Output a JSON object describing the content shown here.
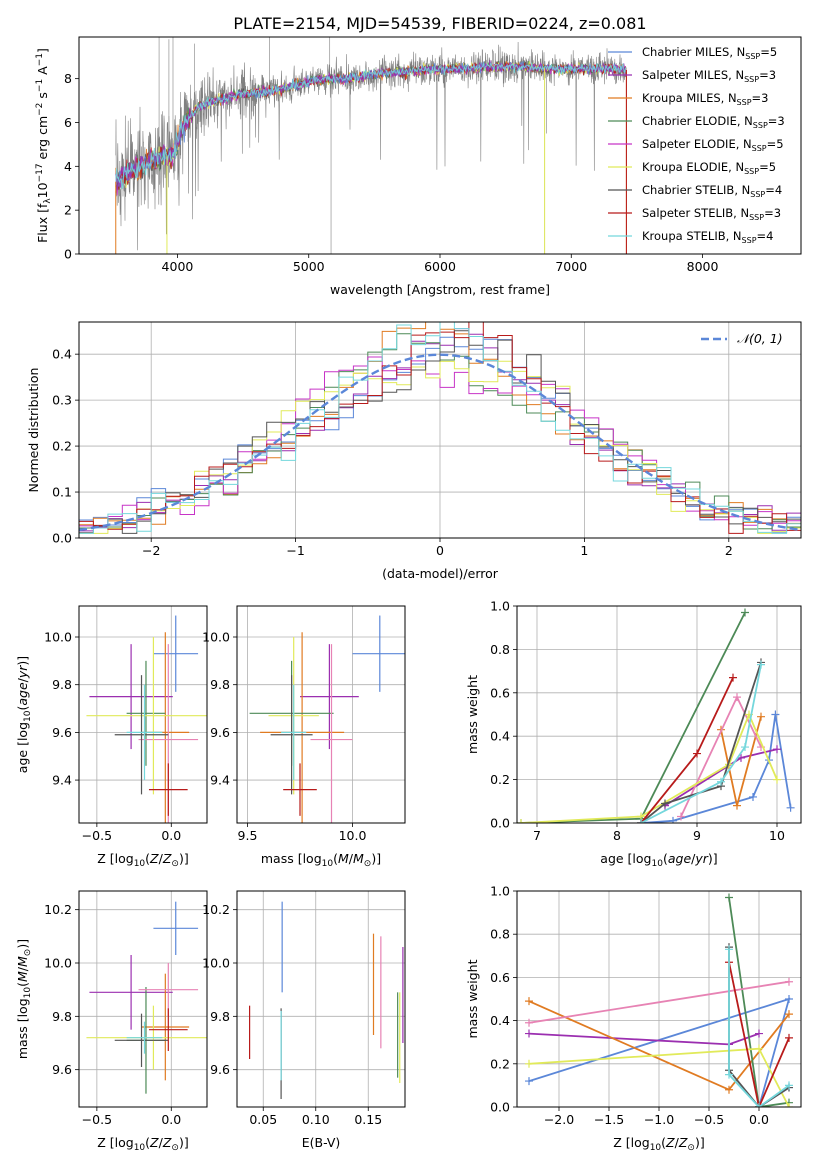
{
  "figure": {
    "title": "PLATE=2154, MJD=54539, FIBERID=0224, z=0.081"
  },
  "palette": {
    "chabrier_miles": "#5b87d8",
    "salpeter_miles": "#9b2fb0",
    "kroupa_miles": "#e07b22",
    "chabrier_elodie": "#4d8a57",
    "salpeter_elodie": "#c734c7",
    "kroupa_elodie": "#e1ea5a",
    "chabrier_stelib": "#555555",
    "salpeter_stelib": "#b81b1b",
    "kroupa_stelib": "#74d7dc",
    "data_gray": "#808080",
    "pink": "#e783b4",
    "grid": "#b0b0b0"
  },
  "chart_data": [
    {
      "id": "spectrum",
      "type": "line",
      "title": "",
      "xlabel": "wavelength [Angstrom, rest frame]",
      "ylabel": "Flux [f_λ 10^-17 erg cm^-2 s^-1 A^-1]",
      "xlim": [
        3250,
        8750
      ],
      "ylim": [
        0,
        9.9
      ],
      "xticks": [
        4000,
        5000,
        6000,
        7000,
        8000
      ],
      "yticks": [
        0,
        2,
        4,
        6,
        8
      ],
      "grid": false,
      "legend_position": "right",
      "x_range_data": [
        3530,
        7420
      ],
      "continuum": [
        [
          3530,
          3.3
        ],
        [
          3600,
          3.6
        ],
        [
          3700,
          3.9
        ],
        [
          3800,
          4.2
        ],
        [
          3900,
          4.5
        ],
        [
          3960,
          4.4
        ],
        [
          4050,
          5.8
        ],
        [
          4150,
          6.7
        ],
        [
          4300,
          7.0
        ],
        [
          4500,
          7.3
        ],
        [
          4700,
          7.4
        ],
        [
          4900,
          7.7
        ],
        [
          5100,
          8.0
        ],
        [
          5300,
          8.0
        ],
        [
          5500,
          8.2
        ],
        [
          5700,
          8.3
        ],
        [
          5900,
          8.4
        ],
        [
          6100,
          8.45
        ],
        [
          6300,
          8.5
        ],
        [
          6500,
          8.55
        ],
        [
          6700,
          8.5
        ],
        [
          6900,
          8.45
        ],
        [
          7100,
          8.45
        ],
        [
          7300,
          8.45
        ],
        [
          7420,
          8.4
        ]
      ],
      "legend": [
        {
          "label": "Chabrier MILES, N",
          "sub": "SSP",
          "suffix": "=5",
          "color_key": "chabrier_miles"
        },
        {
          "label": "Salpeter MILES, N",
          "sub": "SSP",
          "suffix": "=3",
          "color_key": "salpeter_miles"
        },
        {
          "label": "Kroupa MILES, N",
          "sub": "SSP",
          "suffix": "=3",
          "color_key": "kroupa_miles"
        },
        {
          "label": "Chabrier ELODIE, N",
          "sub": "SSP",
          "suffix": "=3",
          "color_key": "chabrier_elodie"
        },
        {
          "label": "Salpeter ELODIE, N",
          "sub": "SSP",
          "suffix": "=5",
          "color_key": "salpeter_elodie"
        },
        {
          "label": "Kroupa ELODIE, N",
          "sub": "SSP",
          "suffix": "=5",
          "color_key": "kroupa_elodie"
        },
        {
          "label": "Chabrier STELIB, N",
          "sub": "SSP",
          "suffix": "=4",
          "color_key": "chabrier_stelib"
        },
        {
          "label": "Salpeter STELIB, N",
          "sub": "SSP",
          "suffix": "=3",
          "color_key": "salpeter_stelib"
        },
        {
          "label": "Kroupa STELIB, N",
          "sub": "SSP",
          "suffix": "=4",
          "color_key": "kroupa_stelib"
        }
      ]
    },
    {
      "id": "residuals",
      "type": "line",
      "title": "",
      "xlabel": "(data-model)/error",
      "ylabel": "Normed distribution",
      "xlim": [
        -2.5,
        2.5
      ],
      "ylim": [
        0,
        0.47
      ],
      "xticks": [
        -2,
        -1,
        0,
        1,
        2
      ],
      "yticks": [
        0.0,
        0.1,
        0.2,
        0.3,
        0.4
      ],
      "grid": true,
      "legend_position": "upper right",
      "legend": [
        {
          "label": "𝒩(0, 1)",
          "color_key": "chabrier_miles"
        }
      ],
      "gaussian": {
        "mu": 0,
        "sigma": 1
      }
    },
    {
      "id": "age_vs_Z",
      "type": "scatter",
      "title": "",
      "xlabel": "Z [log10(Z/Z⊙)]",
      "ylabel": "age [log10(age/yr)]",
      "xlim": [
        -0.62,
        0.24
      ],
      "ylim": [
        9.22,
        10.13
      ],
      "xticks": [
        -0.5,
        0.0
      ],
      "yticks": [
        9.4,
        9.6,
        9.8,
        10.0
      ],
      "grid": true,
      "points": [
        {
          "x": 0.03,
          "y": 9.93,
          "xerr": 0.15,
          "yerr": 0.16,
          "color_key": "chabrier_miles"
        },
        {
          "x": -0.27,
          "y": 9.75,
          "xerr": 0.28,
          "yerr": 0.22,
          "color_key": "salpeter_miles"
        },
        {
          "x": -0.04,
          "y": 9.6,
          "xerr": 0.16,
          "yerr": 0.42,
          "color_key": "kroupa_miles"
        },
        {
          "x": -0.17,
          "y": 9.68,
          "xerr": 0.13,
          "yerr": 0.22,
          "color_key": "chabrier_elodie"
        },
        {
          "x": -0.02,
          "y": 9.57,
          "xerr": 0.2,
          "yerr": 0.4,
          "color_key": "pink"
        },
        {
          "x": -0.12,
          "y": 9.67,
          "xerr": 0.45,
          "yerr": 0.33,
          "color_key": "kroupa_elodie"
        },
        {
          "x": -0.2,
          "y": 9.59,
          "xerr": 0.18,
          "yerr": 0.25,
          "color_key": "chabrier_stelib"
        },
        {
          "x": -0.02,
          "y": 9.36,
          "xerr": 0.13,
          "yerr": 0.11,
          "color_key": "salpeter_stelib"
        },
        {
          "x": -0.18,
          "y": 9.6,
          "xerr": 0.12,
          "yerr": 0.2,
          "color_key": "kroupa_stelib"
        }
      ]
    },
    {
      "id": "age_vs_mass",
      "type": "scatter",
      "title": "",
      "xlabel": "mass [log10(M/M⊙)]",
      "ylabel": "",
      "xlim": [
        9.45,
        10.25
      ],
      "ylim": [
        9.22,
        10.13
      ],
      "xticks": [
        9.5,
        10.0
      ],
      "yticks": [
        9.4,
        9.6,
        9.8,
        10.0
      ],
      "grid": true,
      "points": [
        {
          "x": 10.13,
          "y": 9.93,
          "xerr": 0.13,
          "yerr": 0.16,
          "color_key": "chabrier_miles"
        },
        {
          "x": 9.89,
          "y": 9.75,
          "xerr": 0.14,
          "yerr": 0.22,
          "color_key": "salpeter_miles"
        },
        {
          "x": 9.76,
          "y": 9.6,
          "xerr": 0.2,
          "yerr": 0.42,
          "color_key": "kroupa_miles"
        },
        {
          "x": 9.71,
          "y": 9.68,
          "xerr": 0.2,
          "yerr": 0.22,
          "color_key": "chabrier_elodie"
        },
        {
          "x": 9.9,
          "y": 9.57,
          "xerr": 0.1,
          "yerr": 0.4,
          "color_key": "pink"
        },
        {
          "x": 9.72,
          "y": 9.67,
          "xerr": 0.12,
          "yerr": 0.33,
          "color_key": "kroupa_elodie"
        },
        {
          "x": 9.71,
          "y": 9.59,
          "xerr": 0.1,
          "yerr": 0.25,
          "color_key": "chabrier_stelib"
        },
        {
          "x": 9.75,
          "y": 9.36,
          "xerr": 0.08,
          "yerr": 0.11,
          "color_key": "salpeter_stelib"
        },
        {
          "x": 9.72,
          "y": 9.6,
          "xerr": 0.06,
          "yerr": 0.2,
          "color_key": "kroupa_stelib"
        }
      ]
    },
    {
      "id": "weight_vs_age",
      "type": "line",
      "title": "",
      "xlabel": "age [log10(age/yr)]",
      "ylabel": "mass weight",
      "xlim": [
        6.75,
        10.3
      ],
      "ylim": [
        0,
        1.0
      ],
      "xticks": [
        7,
        8,
        9,
        10
      ],
      "yticks": [
        0.0,
        0.2,
        0.4,
        0.6,
        0.8,
        1.0
      ],
      "grid": true,
      "series": [
        {
          "color_key": "chabrier_miles",
          "points": [
            [
              8.3,
              0.0
            ],
            [
              8.7,
              0.01
            ],
            [
              9.7,
              0.12
            ],
            [
              9.9,
              0.29
            ],
            [
              9.98,
              0.5
            ],
            [
              10.17,
              0.07
            ]
          ]
        },
        {
          "color_key": "salpeter_miles",
          "points": [
            [
              8.6,
              0.08
            ],
            [
              9.55,
              0.3
            ],
            [
              10.0,
              0.34
            ]
          ]
        },
        {
          "color_key": "kroupa_miles",
          "points": [
            [
              9.3,
              0.43
            ],
            [
              9.5,
              0.08
            ],
            [
              9.8,
              0.49
            ]
          ]
        },
        {
          "color_key": "chabrier_elodie",
          "points": [
            [
              6.8,
              0.0
            ],
            [
              8.3,
              0.02
            ],
            [
              9.6,
              0.97
            ]
          ]
        },
        {
          "color_key": "pink",
          "points": [
            [
              8.8,
              0.03
            ],
            [
              9.5,
              0.58
            ],
            [
              9.8,
              0.35
            ]
          ]
        },
        {
          "color_key": "kroupa_elodie",
          "points": [
            [
              6.8,
              0.0
            ],
            [
              8.3,
              0.03
            ],
            [
              9.4,
              0.27
            ],
            [
              9.65,
              0.5
            ],
            [
              10.0,
              0.2
            ]
          ]
        },
        {
          "color_key": "chabrier_stelib",
          "points": [
            [
              8.3,
              0.0
            ],
            [
              8.6,
              0.09
            ],
            [
              9.3,
              0.17
            ],
            [
              9.8,
              0.74
            ]
          ]
        },
        {
          "color_key": "salpeter_stelib",
          "points": [
            [
              8.3,
              0.0
            ],
            [
              9.0,
              0.32
            ],
            [
              9.45,
              0.67
            ]
          ]
        },
        {
          "color_key": "kroupa_stelib",
          "points": [
            [
              8.3,
              0.0
            ],
            [
              9.3,
              0.19
            ],
            [
              9.6,
              0.35
            ],
            [
              9.8,
              0.73
            ]
          ]
        }
      ]
    },
    {
      "id": "mass_vs_Z",
      "type": "scatter",
      "title": "",
      "xlabel": "Z [log10(Z/Z⊙)]",
      "ylabel": "mass [log10(M/M⊙)]",
      "xlim": [
        -0.62,
        0.24
      ],
      "ylim": [
        9.46,
        10.27
      ],
      "xticks": [
        -0.5,
        0.0
      ],
      "yticks": [
        9.6,
        9.8,
        10.0,
        10.2
      ],
      "grid": true,
      "points": [
        {
          "x": 0.03,
          "y": 10.13,
          "xerr": 0.15,
          "yerr": 0.1,
          "color_key": "chabrier_miles"
        },
        {
          "x": -0.27,
          "y": 9.89,
          "xerr": 0.28,
          "yerr": 0.14,
          "color_key": "salpeter_miles"
        },
        {
          "x": -0.04,
          "y": 9.76,
          "xerr": 0.16,
          "yerr": 0.2,
          "color_key": "kroupa_miles"
        },
        {
          "x": -0.17,
          "y": 9.71,
          "xerr": 0.13,
          "yerr": 0.2,
          "color_key": "chabrier_elodie"
        },
        {
          "x": -0.02,
          "y": 9.9,
          "xerr": 0.2,
          "yerr": 0.1,
          "color_key": "pink"
        },
        {
          "x": -0.12,
          "y": 9.72,
          "xerr": 0.45,
          "yerr": 0.12,
          "color_key": "kroupa_elodie"
        },
        {
          "x": -0.2,
          "y": 9.71,
          "xerr": 0.18,
          "yerr": 0.1,
          "color_key": "chabrier_stelib"
        },
        {
          "x": -0.02,
          "y": 9.75,
          "xerr": 0.13,
          "yerr": 0.08,
          "color_key": "salpeter_stelib"
        },
        {
          "x": -0.18,
          "y": 9.72,
          "xerr": 0.12,
          "yerr": 0.06,
          "color_key": "kroupa_stelib"
        }
      ]
    },
    {
      "id": "mass_vs_ebv",
      "type": "scatter",
      "title": "",
      "xlabel": "E(B-V)",
      "ylabel": "",
      "xlim": [
        0.025,
        0.185
      ],
      "ylim": [
        9.46,
        10.27
      ],
      "xticks": [
        0.05,
        0.1,
        0.15
      ],
      "yticks": [
        9.6,
        9.8,
        10.0,
        10.2
      ],
      "grid": true,
      "points": [
        {
          "x": 0.068,
          "y": 10.06,
          "xerr": 0,
          "yerr": 0.17,
          "color_key": "chabrier_miles"
        },
        {
          "x": 0.183,
          "y": 9.88,
          "xerr": 0,
          "yerr": 0.18,
          "color_key": "salpeter_miles"
        },
        {
          "x": 0.155,
          "y": 9.92,
          "xerr": 0,
          "yerr": 0.19,
          "color_key": "kroupa_miles"
        },
        {
          "x": 0.178,
          "y": 9.73,
          "xerr": 0,
          "yerr": 0.16,
          "color_key": "chabrier_elodie"
        },
        {
          "x": 0.162,
          "y": 9.89,
          "xerr": 0,
          "yerr": 0.21,
          "color_key": "pink"
        },
        {
          "x": 0.18,
          "y": 9.72,
          "xerr": 0,
          "yerr": 0.17,
          "color_key": "kroupa_elodie"
        },
        {
          "x": 0.067,
          "y": 9.66,
          "xerr": 0,
          "yerr": 0.17,
          "color_key": "chabrier_stelib"
        },
        {
          "x": 0.037,
          "y": 9.74,
          "xerr": 0,
          "yerr": 0.1,
          "color_key": "salpeter_stelib"
        },
        {
          "x": 0.067,
          "y": 9.69,
          "xerr": 0,
          "yerr": 0.13,
          "color_key": "kroupa_stelib"
        }
      ]
    },
    {
      "id": "weight_vs_Z",
      "type": "line",
      "title": "",
      "xlabel": "Z [log10(Z/Z⊙)]",
      "ylabel": "mass weight",
      "xlim": [
        -2.42,
        0.42
      ],
      "ylim": [
        0,
        1.0
      ],
      "xticks": [
        -2.0,
        -1.5,
        -1.0,
        -0.5,
        0.0
      ],
      "yticks": [
        0.0,
        0.2,
        0.4,
        0.6,
        0.8,
        1.0
      ],
      "grid": true,
      "series": [
        {
          "color_key": "chabrier_miles",
          "points": [
            [
              -2.3,
              0.12
            ],
            [
              0.3,
              0.5
            ],
            [
              0.0,
              0.0
            ],
            [
              0.3,
              0.09
            ]
          ]
        },
        {
          "color_key": "salpeter_miles",
          "points": [
            [
              -2.3,
              0.34
            ],
            [
              -0.3,
              0.29
            ],
            [
              0.0,
              0.34
            ]
          ]
        },
        {
          "color_key": "kroupa_miles",
          "points": [
            [
              -2.3,
              0.49
            ],
            [
              -0.3,
              0.08
            ],
            [
              0.3,
              0.43
            ]
          ]
        },
        {
          "color_key": "chabrier_elodie",
          "points": [
            [
              -0.3,
              0.97
            ],
            [
              0.0,
              0.0
            ],
            [
              0.3,
              0.02
            ]
          ]
        },
        {
          "color_key": "pink",
          "points": [
            [
              -2.3,
              0.39
            ],
            [
              0.3,
              0.58
            ]
          ]
        },
        {
          "color_key": "kroupa_elodie",
          "points": [
            [
              -2.3,
              0.2
            ],
            [
              0.0,
              0.27
            ],
            [
              0.3,
              0.0
            ]
          ]
        },
        {
          "color_key": "chabrier_stelib",
          "points": [
            [
              -0.3,
              0.74
            ],
            [
              -0.3,
              0.17
            ],
            [
              0.0,
              0.0
            ],
            [
              0.3,
              0.09
            ]
          ]
        },
        {
          "color_key": "salpeter_stelib",
          "points": [
            [
              -0.3,
              0.67
            ],
            [
              0.0,
              0.0
            ],
            [
              0.3,
              0.32
            ]
          ]
        },
        {
          "color_key": "kroupa_stelib",
          "points": [
            [
              -0.3,
              0.73
            ],
            [
              -0.3,
              0.15
            ],
            [
              0.0,
              0.0
            ],
            [
              0.3,
              0.1
            ]
          ]
        }
      ]
    }
  ]
}
